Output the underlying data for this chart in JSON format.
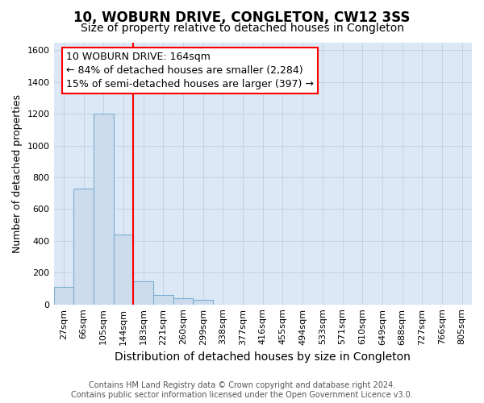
{
  "title": "10, WOBURN DRIVE, CONGLETON, CW12 3SS",
  "subtitle": "Size of property relative to detached houses in Congleton",
  "xlabel": "Distribution of detached houses by size in Congleton",
  "ylabel": "Number of detached properties",
  "footer_line1": "Contains HM Land Registry data © Crown copyright and database right 2024.",
  "footer_line2": "Contains public sector information licensed under the Open Government Licence v3.0.",
  "categories": [
    "27sqm",
    "66sqm",
    "105sqm",
    "144sqm",
    "183sqm",
    "221sqm",
    "260sqm",
    "299sqm",
    "338sqm",
    "377sqm",
    "416sqm",
    "455sqm",
    "494sqm",
    "533sqm",
    "571sqm",
    "610sqm",
    "649sqm",
    "688sqm",
    "727sqm",
    "766sqm",
    "805sqm"
  ],
  "values": [
    110,
    730,
    1200,
    440,
    145,
    60,
    40,
    30,
    0,
    0,
    0,
    0,
    0,
    0,
    0,
    0,
    0,
    0,
    0,
    0,
    0
  ],
  "bar_color": "#cddcec",
  "bar_edge_color": "#7aafd4",
  "grid_color": "#c0cfe0",
  "background_color": "#dce8f5",
  "ylim": [
    0,
    1650
  ],
  "yticks": [
    0,
    200,
    400,
    600,
    800,
    1000,
    1200,
    1400,
    1600
  ],
  "red_line_x": 3.5,
  "annotation_line1": "10 WOBURN DRIVE: 164sqm",
  "annotation_line2": "← 84% of detached houses are smaller (2,284)",
  "annotation_line3": "15% of semi-detached houses are larger (397) →",
  "title_fontsize": 12,
  "subtitle_fontsize": 10,
  "tick_fontsize": 8,
  "ylabel_fontsize": 9,
  "xlabel_fontsize": 10,
  "annotation_fontsize": 9,
  "footer_fontsize": 7
}
